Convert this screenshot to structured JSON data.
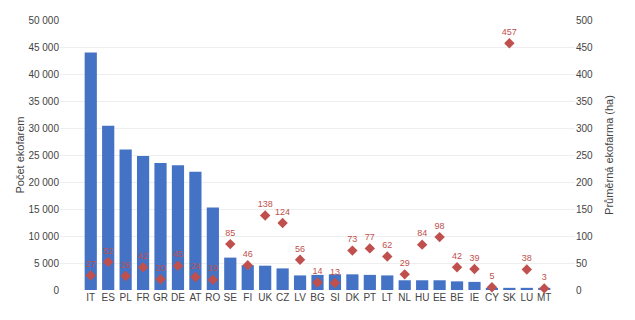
{
  "chart_data": {
    "type": "bar",
    "categories": [
      "IT",
      "ES",
      "PL",
      "FR",
      "GR",
      "DE",
      "AT",
      "RO",
      "SE",
      "FI",
      "UK",
      "CZ",
      "LV",
      "BG",
      "SI",
      "DK",
      "PT",
      "LT",
      "NL",
      "HU",
      "EE",
      "BE",
      "IE",
      "CY",
      "SK",
      "LU",
      "MT"
    ],
    "series": [
      {
        "type": "bar",
        "color": "#4472C4",
        "values": [
          44000,
          30400,
          26000,
          24800,
          23500,
          23100,
          21900,
          15300,
          6000,
          4600,
          4500,
          4000,
          2700,
          2800,
          2900,
          2900,
          2800,
          2700,
          1800,
          1800,
          1800,
          1600,
          1500,
          400,
          400,
          400,
          400
        ]
      },
      {
        "type": "scatter",
        "marker": "diamond",
        "color": "#C0504D",
        "axis": "y2",
        "data_labels": true,
        "values": [
          27,
          52,
          26,
          42,
          20,
          45,
          24,
          19,
          85,
          46,
          138,
          124,
          56,
          14,
          13,
          73,
          77,
          62,
          29,
          84,
          98,
          42,
          39,
          5,
          457,
          38,
          3
        ]
      }
    ],
    "ylabel": "Počet ekofarem",
    "y2label": "Průměrná ekofarma (ha)",
    "ylim": [
      0,
      50000
    ],
    "yticks": [
      0,
      {
        "value": 5000,
        "label": "5 000"
      },
      {
        "value": 10000,
        "label": "10 000"
      },
      {
        "value": 15000,
        "label": "15 000"
      },
      {
        "value": 20000,
        "label": "20 000"
      },
      {
        "value": 25000,
        "label": "25 000"
      },
      {
        "value": 30000,
        "label": "30 000"
      },
      {
        "value": 35000,
        "label": "35 000"
      },
      {
        "value": 40000,
        "label": "40 000"
      },
      {
        "value": 45000,
        "label": "45 000"
      },
      {
        "value": 50000,
        "label": "50 000"
      }
    ],
    "y2lim": [
      0,
      500
    ],
    "y2ticks": [
      0,
      50,
      100,
      150,
      200,
      250,
      300,
      350,
      400,
      450,
      500
    ],
    "grid": true
  }
}
